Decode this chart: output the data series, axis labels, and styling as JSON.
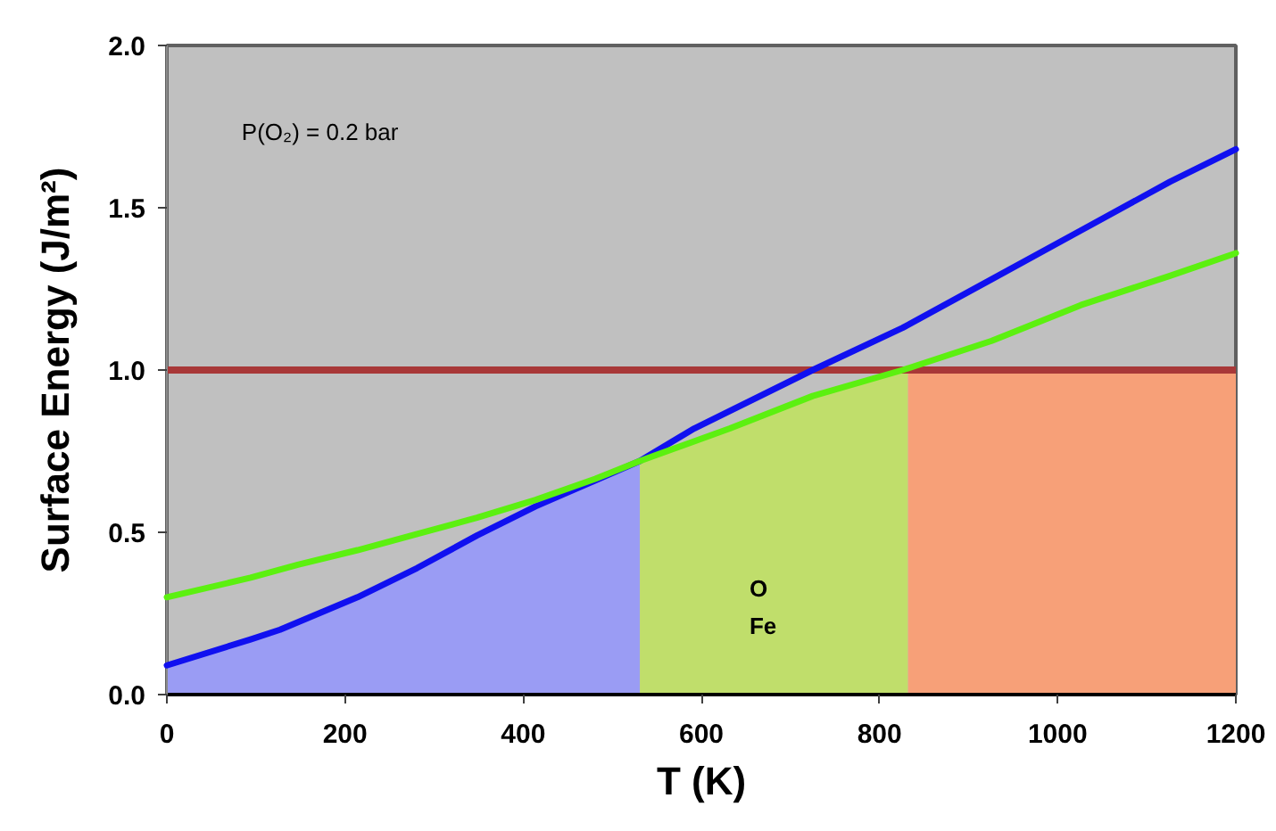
{
  "chart_data": {
    "type": "line",
    "xlabel": "T (K)",
    "ylabel": "Surface Energy (J/m²)",
    "xlim": [
      0,
      1200
    ],
    "ylim": [
      0,
      2
    ],
    "xticks": [
      0,
      200,
      400,
      600,
      800,
      1000,
      1200
    ],
    "yticks": [
      {
        "value": 0,
        "label": "0.0"
      },
      {
        "value": 0.5,
        "label": "0.5"
      },
      {
        "value": 1,
        "label": "1.0"
      },
      {
        "value": 1.5,
        "label": "1.5"
      },
      {
        "value": 2,
        "label": "2.0"
      }
    ],
    "grid": false,
    "series": [
      {
        "type": "area",
        "color": "#9a9cf4",
        "x": [
          0,
          94,
          127,
          214,
          281,
          348,
          414,
          481,
          531
        ],
        "values": [
          0.09,
          0.17,
          0.2,
          0.3,
          0.39,
          0.49,
          0.58,
          0.66,
          0.72
        ]
      },
      {
        "type": "area",
        "color": "#c0de6b",
        "x": [
          531,
          632,
          725,
          832
        ],
        "values": [
          0.72,
          0.82,
          0.92,
          1.0
        ]
      },
      {
        "type": "area",
        "color": "#f7a078",
        "x": [
          832,
          1200
        ],
        "values": [
          1.0,
          1.0
        ]
      },
      {
        "color": "#1010f0",
        "x": [
          0,
          94,
          127,
          214,
          281,
          348,
          414,
          481,
          531,
          592,
          725,
          826,
          926,
          1026,
          1126,
          1200
        ],
        "values": [
          0.09,
          0.17,
          0.2,
          0.3,
          0.39,
          0.49,
          0.58,
          0.66,
          0.72,
          0.82,
          1.0,
          1.13,
          1.28,
          1.43,
          1.58,
          1.68
        ]
      },
      {
        "color": "#5cf010",
        "x": [
          0,
          94,
          147,
          214,
          281,
          348,
          414,
          481,
          531,
          632,
          725,
          826,
          926,
          1026,
          1126,
          1200
        ],
        "values": [
          0.3,
          0.36,
          0.4,
          0.445,
          0.495,
          0.545,
          0.6,
          0.665,
          0.72,
          0.82,
          0.92,
          1.0,
          1.09,
          1.2,
          1.29,
          1.36
        ]
      }
    ],
    "ref_lines": [
      {
        "axis": "y",
        "value": 1.0,
        "color": "#a83838"
      }
    ],
    "annotations": [
      "P(O₂) = 0.2 bar",
      "O",
      "Fe"
    ]
  }
}
